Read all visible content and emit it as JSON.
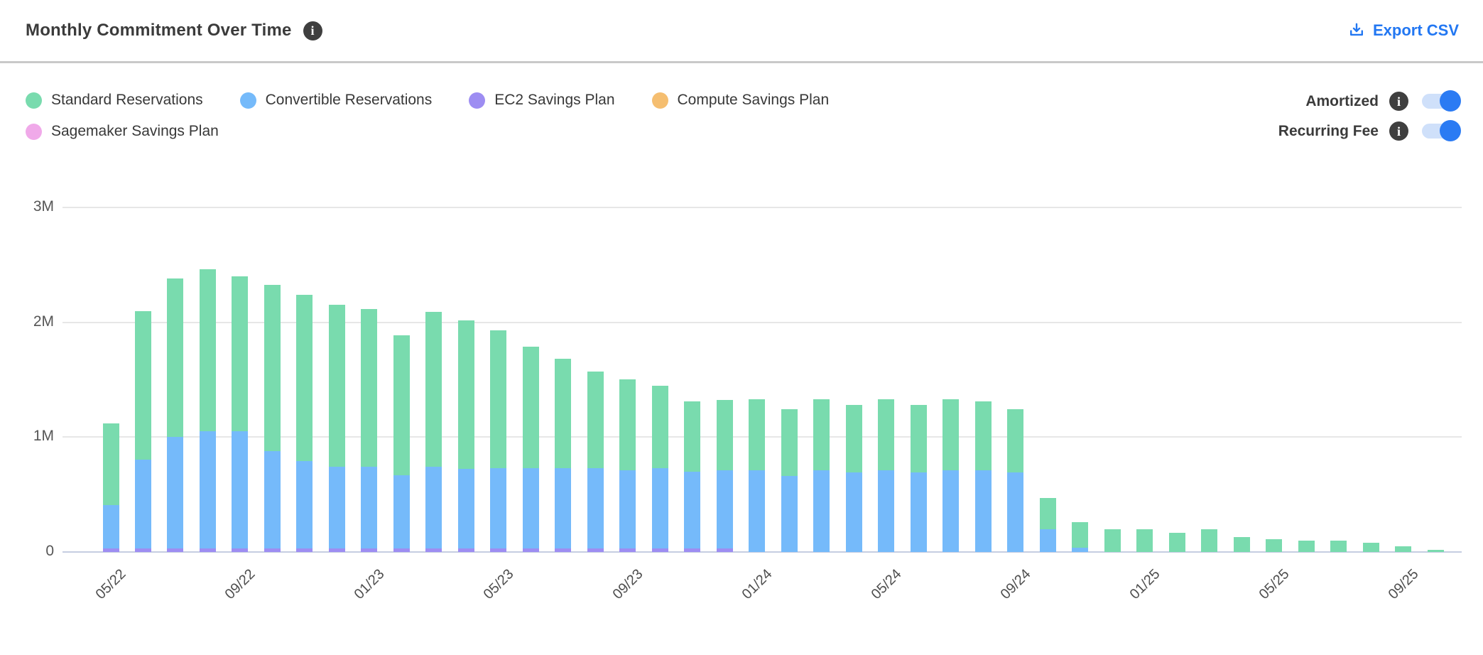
{
  "header": {
    "title": "Monthly Commitment Over Time",
    "export_label": "Export CSV"
  },
  "legend": {
    "items": [
      {
        "label": "Standard Reservations",
        "color": "#79dbae"
      },
      {
        "label": "Convertible Reservations",
        "color": "#75bafa"
      },
      {
        "label": "EC2 Savings Plan",
        "color": "#9d8df2"
      },
      {
        "label": "Compute Savings Plan",
        "color": "#f5be70"
      },
      {
        "label": "Sagemaker Savings Plan",
        "color": "#f0a9e9"
      }
    ]
  },
  "toggles": [
    {
      "label": "Amortized",
      "state": "on"
    },
    {
      "label": "Recurring Fee",
      "state": "on"
    }
  ],
  "colors": {
    "accent_blue": "#2277f2",
    "toggle_on": "#2b7bf3",
    "toggle_track": "#cfe0fa",
    "grid": "#e7e7e7",
    "zero_line": "#c5cde1",
    "axis_text": "#565656",
    "divider": "#c9c9c9"
  },
  "chart_data": {
    "type": "bar",
    "subtype": "stacked-vertical",
    "unit": "millions",
    "ylim": [
      0,
      3
    ],
    "y_ticks": [
      {
        "label": "3M",
        "value": 3
      },
      {
        "label": "2M",
        "value": 2
      },
      {
        "label": "1M",
        "value": 1
      },
      {
        "label": "0",
        "value": 0
      }
    ],
    "x_tick_every": 4,
    "categories": [
      "05/22",
      "06/22",
      "07/22",
      "08/22",
      "09/22",
      "10/22",
      "11/22",
      "12/22",
      "01/23",
      "02/23",
      "03/23",
      "04/23",
      "05/23",
      "06/23",
      "07/23",
      "08/23",
      "09/23",
      "10/23",
      "11/23",
      "12/23",
      "01/24",
      "02/24",
      "03/24",
      "04/24",
      "05/24",
      "06/24",
      "07/24",
      "08/24",
      "09/24",
      "10/24",
      "11/24",
      "12/24",
      "01/25",
      "02/25",
      "03/25",
      "04/25",
      "05/25",
      "06/25",
      "07/25",
      "08/25",
      "09/25",
      "10/25"
    ],
    "visible_x_tick_labels": [
      "05/22",
      "09/22",
      "01/23",
      "05/23",
      "09/23",
      "01/24",
      "05/24",
      "09/24",
      "01/25",
      "05/25",
      "09/25"
    ],
    "stack_order_bottom_up": [
      "EC2 Savings Plan",
      "Compute Savings Plan",
      "Sagemaker Savings Plan",
      "Convertible Reservations",
      "Standard Reservations"
    ],
    "series": [
      {
        "name": "Standard Reservations",
        "color": "#79dbae",
        "values": [
          0.71,
          1.29,
          1.38,
          1.41,
          1.35,
          1.45,
          1.45,
          1.41,
          1.37,
          1.22,
          1.35,
          1.29,
          1.2,
          1.06,
          0.95,
          0.84,
          0.79,
          0.72,
          0.61,
          0.61,
          0.62,
          0.58,
          0.62,
          0.59,
          0.62,
          0.59,
          0.62,
          0.6,
          0.55,
          0.27,
          0.22,
          0.2,
          0.2,
          0.17,
          0.2,
          0.13,
          0.11,
          0.1,
          0.1,
          0.08,
          0.05,
          0.02
        ]
      },
      {
        "name": "Convertible Reservations",
        "color": "#75bafa",
        "values": [
          0.38,
          0.77,
          0.97,
          1.02,
          1.02,
          0.85,
          0.76,
          0.71,
          0.71,
          0.64,
          0.71,
          0.69,
          0.7,
          0.7,
          0.7,
          0.7,
          0.68,
          0.7,
          0.67,
          0.68,
          0.71,
          0.66,
          0.71,
          0.69,
          0.71,
          0.69,
          0.71,
          0.71,
          0.69,
          0.2,
          0.04,
          0,
          0,
          0,
          0,
          0,
          0,
          0,
          0,
          0,
          0,
          0
        ]
      },
      {
        "name": "EC2 Savings Plan",
        "color": "#9d8df2",
        "values": [
          0.03,
          0.03,
          0.03,
          0.03,
          0.03,
          0.03,
          0.03,
          0.03,
          0.03,
          0.03,
          0.03,
          0.03,
          0.03,
          0.03,
          0.03,
          0.03,
          0.03,
          0.03,
          0.03,
          0.03,
          0,
          0,
          0,
          0,
          0,
          0,
          0,
          0,
          0,
          0,
          0,
          0,
          0,
          0,
          0,
          0,
          0,
          0,
          0,
          0,
          0,
          0
        ]
      },
      {
        "name": "Compute Savings Plan",
        "color": "#f5be70",
        "values": [
          0,
          0,
          0,
          0,
          0,
          0,
          0,
          0,
          0,
          0,
          0,
          0,
          0,
          0,
          0,
          0,
          0,
          0,
          0,
          0,
          0,
          0,
          0,
          0,
          0,
          0,
          0,
          0,
          0,
          0,
          0,
          0,
          0,
          0,
          0,
          0,
          0,
          0,
          0,
          0,
          0,
          0
        ]
      },
      {
        "name": "Sagemaker Savings Plan",
        "color": "#f0a9e9",
        "values": [
          0,
          0,
          0,
          0,
          0,
          0,
          0,
          0,
          0,
          0,
          0,
          0,
          0,
          0,
          0,
          0,
          0,
          0,
          0,
          0,
          0,
          0,
          0,
          0,
          0,
          0,
          0,
          0,
          0,
          0,
          0,
          0,
          0,
          0,
          0,
          0,
          0,
          0,
          0,
          0,
          0,
          0
        ]
      }
    ]
  }
}
